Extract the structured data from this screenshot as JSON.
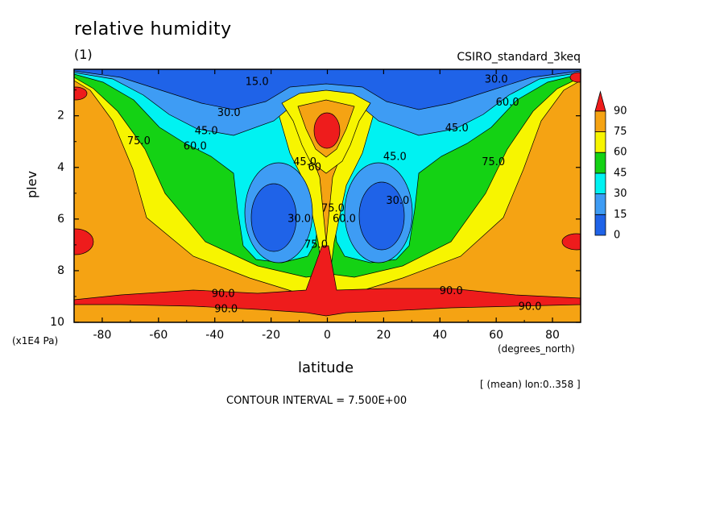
{
  "title": "relative humidity",
  "subtitle": "(1)",
  "run_label": "CSIRO_standard_3keq",
  "y_unit": "(x1E4 Pa)",
  "x_unit": "(degrees_north)",
  "averaging_note": "[ (mean) lon:0..358 ]",
  "contour_interval_text": "CONTOUR INTERVAL = 7.500E+00",
  "colors": {
    "band_0_15": "#1f63e8",
    "band_15_30": "#3e9cf4",
    "band_30_45": "#00f2f2",
    "band_45_60": "#14d214",
    "band_60_75": "#f7f500",
    "band_75_90": "#f5a313",
    "band_90_plus": "#ee1c1c"
  },
  "chart_data": {
    "type": "heatmap",
    "plot_kind": "filled contour",
    "xlabel": "latitude",
    "ylabel": "plev",
    "xlim": [
      -90,
      90
    ],
    "ylim": [
      10,
      0.2
    ],
    "y_inverted": true,
    "x_ticks": [
      -80,
      -60,
      -40,
      -20,
      0,
      20,
      40,
      60,
      80
    ],
    "y_ticks": [
      2,
      4,
      6,
      8,
      10
    ],
    "contour_interval": 7.5,
    "colorbar": {
      "labels": [
        "0",
        "15",
        "30",
        "45",
        "60",
        "75",
        "90"
      ],
      "levels": [
        0,
        15,
        30,
        45,
        60,
        75,
        90
      ],
      "colors": [
        "#1f63e8",
        "#3e9cf4",
        "#00f2f2",
        "#14d214",
        "#f7f500",
        "#f5a313",
        "#ee1c1c"
      ],
      "extend": "max"
    },
    "contour_labels": [
      {
        "text": "15.0",
        "lat": -25,
        "plev": 0.7
      },
      {
        "text": "30.0",
        "lat": -35,
        "plev": 1.9
      },
      {
        "text": "45.0",
        "lat": -43,
        "plev": 2.6
      },
      {
        "text": "60.0",
        "lat": -47,
        "plev": 3.2
      },
      {
        "text": "75.0",
        "lat": -67,
        "plev": 3.0
      },
      {
        "text": "45.0",
        "lat": -8,
        "plev": 3.8
      },
      {
        "text": "60",
        "lat": -4.5,
        "plev": 4.0
      },
      {
        "text": "30.0",
        "lat": -10,
        "plev": 6.0
      },
      {
        "text": "75.0",
        "lat": 2,
        "plev": 5.6
      },
      {
        "text": "60.0",
        "lat": 6,
        "plev": 6.0
      },
      {
        "text": "75.0",
        "lat": -4,
        "plev": 7.0
      },
      {
        "text": "45.0",
        "lat": 24,
        "plev": 3.6
      },
      {
        "text": "30.0",
        "lat": 25,
        "plev": 5.3
      },
      {
        "text": "45.0",
        "lat": 46,
        "plev": 2.5
      },
      {
        "text": "60.0",
        "lat": 64,
        "plev": 1.5
      },
      {
        "text": "30.0",
        "lat": 60,
        "plev": 0.6
      },
      {
        "text": "75.0",
        "lat": 59,
        "plev": 3.8
      },
      {
        "text": "90.0",
        "lat": -37,
        "plev": 8.9
      },
      {
        "text": "90.0",
        "lat": -36,
        "plev": 9.5
      },
      {
        "text": "90.0",
        "lat": 44,
        "plev": 8.8
      },
      {
        "text": "90.0",
        "lat": 72,
        "plev": 9.4
      }
    ]
  }
}
